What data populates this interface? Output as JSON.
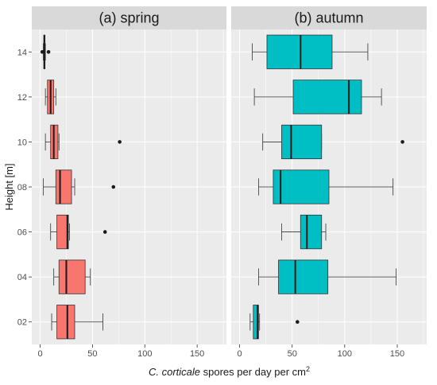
{
  "chart_data": {
    "type": "boxplot",
    "orientation": "horizontal",
    "facets": [
      {
        "title": "(a) spring",
        "fill_color": "#F8766D",
        "boxes": [
          {
            "height": "02",
            "whisker_low": 11,
            "q1": 16,
            "median": 26,
            "q3": 33,
            "whisker_high": 60,
            "outliers": []
          },
          {
            "height": "04",
            "whisker_low": 13,
            "q1": 18,
            "median": 25,
            "q3": 43,
            "whisker_high": 48,
            "outliers": []
          },
          {
            "height": "06",
            "whisker_low": 10,
            "q1": 16,
            "median": 26,
            "q3": 27,
            "whisker_high": 28,
            "outliers": [
              62
            ]
          },
          {
            "height": "08",
            "whisker_low": 3,
            "q1": 15,
            "median": 19,
            "q3": 30,
            "whisker_high": 33,
            "outliers": [
              70
            ]
          },
          {
            "height": "10",
            "whisker_low": 5,
            "q1": 10,
            "median": 13,
            "q3": 17,
            "whisker_high": 18,
            "outliers": [
              76
            ]
          },
          {
            "height": "12",
            "whisker_low": 5,
            "q1": 7,
            "median": 10,
            "q3": 13,
            "whisker_high": 15,
            "outliers": []
          },
          {
            "height": "14",
            "whisker_low": 3,
            "q1": 3.5,
            "median": 4,
            "q3": 4.5,
            "whisker_high": 5,
            "outliers": [
              2,
              8
            ]
          }
        ]
      },
      {
        "title": "(b) autumn",
        "fill_color": "#00BFC4",
        "boxes": [
          {
            "height": "02",
            "whisker_low": 10,
            "q1": 13,
            "median": 17,
            "q3": 18,
            "whisker_high": 19,
            "outliers": [
              55
            ]
          },
          {
            "height": "04",
            "whisker_low": 18,
            "q1": 37,
            "median": 53,
            "q3": 84,
            "whisker_high": 149,
            "outliers": []
          },
          {
            "height": "06",
            "whisker_low": 40,
            "q1": 58,
            "median": 64,
            "q3": 78,
            "whisker_high": 82,
            "outliers": []
          },
          {
            "height": "08",
            "whisker_low": 18,
            "q1": 32,
            "median": 39,
            "q3": 85,
            "whisker_high": 146,
            "outliers": []
          },
          {
            "height": "10",
            "whisker_low": 22,
            "q1": 40,
            "median": 49,
            "q3": 78,
            "whisker_high": 78,
            "outliers": [
              155
            ]
          },
          {
            "height": "12",
            "whisker_low": 14,
            "q1": 51,
            "median": 104,
            "q3": 116,
            "whisker_high": 135,
            "outliers": []
          },
          {
            "height": "14",
            "whisker_low": 12,
            "q1": 26,
            "median": 58,
            "q3": 88,
            "whisker_high": 122,
            "outliers": []
          }
        ]
      }
    ],
    "categories": [
      "02",
      "04",
      "06",
      "08",
      "10",
      "12",
      "14"
    ],
    "xlim": [
      -8,
      178
    ],
    "xticks": [
      0,
      50,
      100,
      150
    ],
    "ylabel": "Height [m]",
    "xlabel_italic": "C. corticale",
    "xlabel_rest": " spores per day per cm",
    "xlabel_superscript": "2",
    "grid": true,
    "panel_background": "#EBEBEB",
    "strip_background": "#D9D9D9"
  }
}
